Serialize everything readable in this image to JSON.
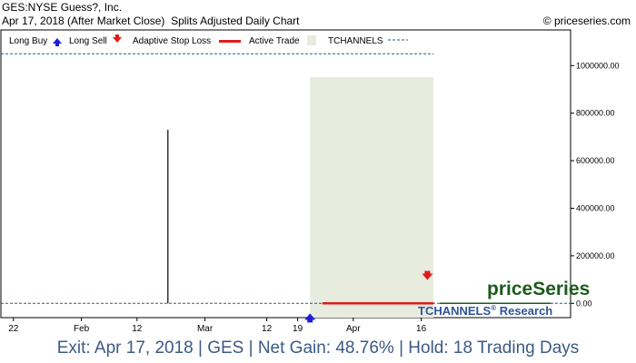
{
  "header": {
    "title": "GES:NYSE Guess?, Inc.",
    "subtitle_date": "Apr 17, 2018 (After Market Close)",
    "subtitle_type": "Splits Adjusted Daily Chart",
    "credit": "© priceseries.com"
  },
  "legend": {
    "long_buy": "Long Buy",
    "long_sell": "Long Sell",
    "adaptive_stop": "Adaptive Stop Loss",
    "active_trade": "Active Trade",
    "tchannels": "TCHANNELS"
  },
  "watermark": {
    "brand": "priceSeries",
    "research": "TCHANNELS",
    "research_suffix": "Research",
    "registered": "®"
  },
  "footer": "Exit: Apr 17, 2018 | GES | Net Gain: 48.76% | Hold: 18 Trading Days",
  "colors": {
    "buy": "#1f1fd6",
    "sell": "#e01b1b",
    "stop": "#e01b1b",
    "active": "#e8ecdf",
    "channel": "#2e5b7a",
    "price": "#000000",
    "text_blue": "#2f5597",
    "brand_green": "#1d5a1d"
  },
  "chart_data": {
    "type": "line",
    "x_ticks": [
      "22",
      "Feb",
      "12",
      "Mar",
      "12",
      "19",
      "Apr",
      "16"
    ],
    "y_ticks": [
      "0.00",
      "200000.00",
      "400000.00",
      "600000.00",
      "800000.00",
      "1000000.00"
    ],
    "ylim": [
      -60000,
      1150000
    ],
    "x_total_days": 60,
    "x_tick_days": [
      1,
      12,
      21,
      32,
      42,
      47,
      56,
      67
    ],
    "tchannel_upper": 1050000,
    "tchannel_lower": 0,
    "price_spike": {
      "day": 26,
      "value": 730000
    },
    "active_trade": {
      "start_day": 49,
      "end_day": 69
    },
    "stop_loss": {
      "start_day": 51,
      "end_day": 69,
      "value": 0
    },
    "buy_signal": {
      "day": 49,
      "value": -50000
    },
    "sell_signal": {
      "day": 68,
      "value": 110000
    },
    "trailing_price": {
      "start_day": 70,
      "end_day": 88,
      "value": 0
    }
  }
}
